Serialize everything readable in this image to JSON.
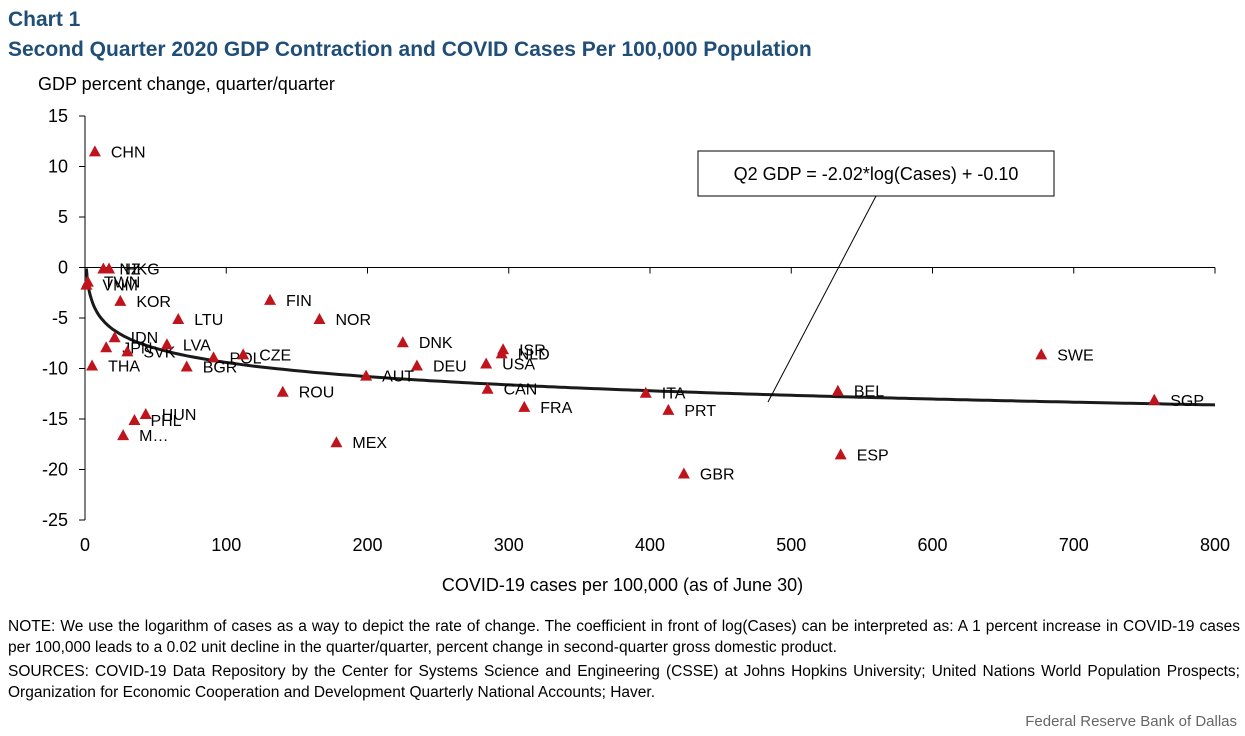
{
  "header": {
    "chart_number": "Chart 1",
    "title": "Second Quarter 2020 GDP Contraction and COVID Cases Per 100,000 Population"
  },
  "footer": {
    "note": "NOTE: We use the logarithm of cases as a way to depict the rate of change. The coefficient in front of log(Cases) can be interpreted as: A 1 percent increase in COVID-19 cases per 100,000 leads to a 0.02 unit decline in the quarter/quarter, percent change in second-quarter gross domestic product.",
    "sources": "SOURCES: COVID-19 Data Repository by the Center for Systems Science and Engineering (CSSE) at Johns Hopkins University; United Nations World Population Prospects; Organization for Economic Cooperation and Development Quarterly National Accounts; Haver.",
    "credit": "Federal Reserve Bank of Dallas"
  },
  "chart_data": {
    "type": "scatter",
    "title": "Second Quarter 2020 GDP Contraction and COVID Cases Per 100,000 Population",
    "xlabel": "COVID-19 cases per 100,000 (as of June 30)",
    "ylabel": "GDP percent change, quarter/quarter",
    "xlim": [
      0,
      800
    ],
    "ylim": [
      -25,
      15
    ],
    "x_ticks": [
      0,
      100,
      200,
      300,
      400,
      500,
      600,
      700,
      800
    ],
    "y_ticks": [
      15,
      10,
      5,
      0,
      -5,
      -10,
      -15,
      -20,
      -25
    ],
    "grid": false,
    "marker_color": "#c0141c",
    "trendline": {
      "type": "logarithmic",
      "coef": -2.02,
      "intercept": -0.1,
      "label": "Q2 GDP = -2.02*log(Cases) + -0.10"
    },
    "points": [
      {
        "label": "CHN",
        "x": 7,
        "y": 11.5
      },
      {
        "label": "NZ",
        "x": 13,
        "y": -0.1
      },
      {
        "label": "HKG",
        "x": 17,
        "y": -0.1
      },
      {
        "label": "TWN",
        "x": 2,
        "y": -1.4
      },
      {
        "label": "VNM",
        "x": 1,
        "y": -1.7
      },
      {
        "label": "KOR",
        "x": 25,
        "y": -3.3
      },
      {
        "label": "IDN",
        "x": 21,
        "y": -6.9
      },
      {
        "label": "JPN",
        "x": 15,
        "y": -7.9
      },
      {
        "label": "SVK",
        "x": 30,
        "y": -8.3
      },
      {
        "label": "THA",
        "x": 5,
        "y": -9.7
      },
      {
        "label": "LTU",
        "x": 66,
        "y": -5.1
      },
      {
        "label": "LVA",
        "x": 58,
        "y": -7.6
      },
      {
        "label": "POL",
        "x": 91,
        "y": -8.9
      },
      {
        "label": "BGR",
        "x": 72,
        "y": -9.8
      },
      {
        "label": "CZE",
        "x": 112,
        "y": -8.6
      },
      {
        "label": "HUN",
        "x": 43,
        "y": -14.5
      },
      {
        "label": "PHL",
        "x": 35,
        "y": -15.1
      },
      {
        "label": "M…",
        "x": 27,
        "y": -16.6
      },
      {
        "label": "FIN",
        "x": 131,
        "y": -3.2
      },
      {
        "label": "NOR",
        "x": 166,
        "y": -5.1
      },
      {
        "label": "ROU",
        "x": 140,
        "y": -12.3
      },
      {
        "label": "MEX",
        "x": 178,
        "y": -17.3
      },
      {
        "label": "AUT",
        "x": 199,
        "y": -10.7
      },
      {
        "label": "DNK",
        "x": 225,
        "y": -7.4
      },
      {
        "label": "DEU",
        "x": 235,
        "y": -9.7
      },
      {
        "label": "ISR",
        "x": 296,
        "y": -8.1
      },
      {
        "label": "NLD",
        "x": 295,
        "y": -8.5
      },
      {
        "label": "USA",
        "x": 284,
        "y": -9.5
      },
      {
        "label": "CAN",
        "x": 285,
        "y": -12.0
      },
      {
        "label": "FRA",
        "x": 311,
        "y": -13.8
      },
      {
        "label": "ITA",
        "x": 397,
        "y": -12.4
      },
      {
        "label": "PRT",
        "x": 413,
        "y": -14.1
      },
      {
        "label": "GBR",
        "x": 424,
        "y": -20.4
      },
      {
        "label": "BEL",
        "x": 533,
        "y": -12.2
      },
      {
        "label": "ESP",
        "x": 535,
        "y": -18.5
      },
      {
        "label": "SWE",
        "x": 677,
        "y": -8.6
      },
      {
        "label": "SGP",
        "x": 757,
        "y": -13.1
      }
    ]
  }
}
